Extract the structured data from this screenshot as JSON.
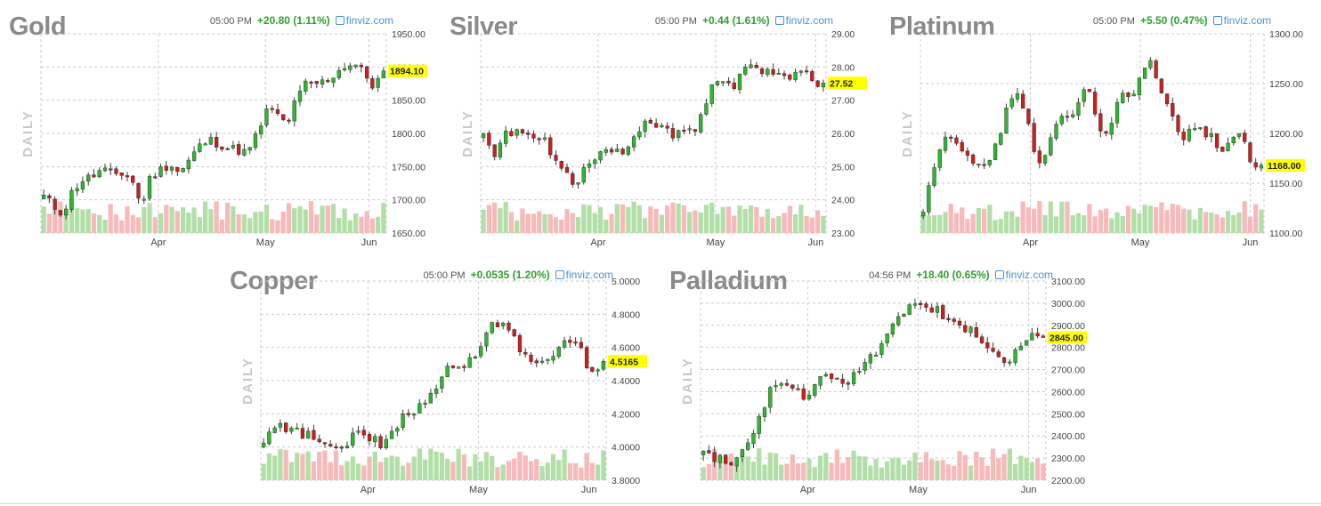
{
  "chart_data": [
    {
      "id": "gold",
      "type": "candlestick",
      "title": "Gold",
      "time": "05:00 PM",
      "change": "+20.80 (1.11%)",
      "source": "finviz.com",
      "period": "DAILY",
      "ylim": [
        1650,
        1950
      ],
      "yticks": [
        "1950.00",
        "1900.00",
        "1850.00",
        "1800.00",
        "1750.00",
        "1700.00",
        "1650.00"
      ],
      "xticks": [
        {
          "label": "Apr",
          "pos": 0.34
        },
        {
          "label": "May",
          "pos": 0.65
        },
        {
          "label": "Jun",
          "pos": 0.95
        }
      ],
      "last": "1894.10",
      "last_value": 1894.1,
      "path": [
        1705,
        1690,
        1680,
        1715,
        1730,
        1735,
        1745,
        1738,
        1740,
        1735,
        1690,
        1735,
        1745,
        1755,
        1740,
        1760,
        1780,
        1790,
        1785,
        1778,
        1775,
        1770,
        1800,
        1835,
        1830,
        1812,
        1850,
        1875,
        1875,
        1878,
        1890,
        1902,
        1905,
        1890,
        1870,
        1894.1
      ]
    },
    {
      "id": "silver",
      "type": "candlestick",
      "title": "Silver",
      "time": "05:00 PM",
      "change": "+0.44 (1.61%)",
      "source": "finviz.com",
      "period": "DAILY",
      "ylim": [
        23,
        29
      ],
      "yticks": [
        "29.00",
        "28.00",
        "27.00",
        "26.00",
        "25.00",
        "24.00",
        "23.00"
      ],
      "xticks": [
        {
          "label": "Apr",
          "pos": 0.34
        },
        {
          "label": "May",
          "pos": 0.68
        },
        {
          "label": "Jun",
          "pos": 0.97
        }
      ],
      "last": "27.52",
      "last_value": 27.52,
      "path": [
        26.1,
        25.1,
        26.2,
        26.0,
        26.1,
        25.8,
        26.0,
        25.2,
        25.0,
        24.3,
        24.9,
        25.3,
        25.5,
        25.6,
        25.3,
        25.9,
        26.2,
        26.4,
        26.1,
        26.0,
        26.2,
        26.0,
        26.6,
        27.5,
        27.7,
        27.4,
        28.0,
        28.1,
        27.8,
        27.9,
        27.7,
        27.8,
        28.0,
        27.5,
        27.52
      ]
    },
    {
      "id": "platinum",
      "type": "candlestick",
      "title": "Platinum",
      "time": "05:00 PM",
      "change": "+5.50 (0.47%)",
      "source": "finviz.com",
      "period": "DAILY",
      "ylim": [
        1100,
        1300
      ],
      "yticks": [
        "1300.00",
        "1250.00",
        "1200.00",
        "1150.00",
        "1100.00"
      ],
      "xticks": [
        {
          "label": "Apr",
          "pos": 0.32
        },
        {
          "label": "May",
          "pos": 0.64
        },
        {
          "label": "Jun",
          "pos": 0.96
        }
      ],
      "last": "1168.00",
      "last_value": 1168.0,
      "path": [
        1120,
        1165,
        1200,
        1195,
        1185,
        1175,
        1160,
        1180,
        1210,
        1240,
        1230,
        1190,
        1165,
        1200,
        1215,
        1220,
        1245,
        1235,
        1195,
        1215,
        1240,
        1230,
        1265,
        1270,
        1240,
        1220,
        1195,
        1210,
        1200,
        1195,
        1175,
        1195,
        1200,
        1162,
        1168
      ]
    },
    {
      "id": "copper",
      "type": "candlestick",
      "title": "Copper",
      "time": "05:00 PM",
      "change": "+0.0535 (1.20%)",
      "source": "finviz.com",
      "period": "DAILY",
      "ylim": [
        3.8,
        5.0
      ],
      "yticks": [
        "5.0000",
        "4.8000",
        "4.6000",
        "4.4000",
        "4.2000",
        "4.0000",
        "3.8000"
      ],
      "xticks": [
        {
          "label": "Apr",
          "pos": 0.31
        },
        {
          "label": "May",
          "pos": 0.63
        },
        {
          "label": "Jun",
          "pos": 0.95
        }
      ],
      "last": "4.5165",
      "last_value": 4.5165,
      "path": [
        4.05,
        4.12,
        4.1,
        4.08,
        4.05,
        4.0,
        3.97,
        4.1,
        4.05,
        4.02,
        4.12,
        4.2,
        4.25,
        4.35,
        4.48,
        4.5,
        4.52,
        4.7,
        4.75,
        4.68,
        4.55,
        4.52,
        4.5,
        4.65,
        4.62,
        4.45,
        4.5165
      ]
    },
    {
      "id": "palladium",
      "type": "candlestick",
      "title": "Palladium",
      "time": "04:56 PM",
      "change": "+18.40 (0.65%)",
      "source": "finviz.com",
      "period": "DAILY",
      "ylim": [
        2200,
        3100
      ],
      "yticks": [
        "3100.00",
        "3000.00",
        "2900.00",
        "2800.00",
        "2700.00",
        "2600.00",
        "2500.00",
        "2400.00",
        "2300.00",
        "2200.00"
      ],
      "xticks": [
        {
          "label": "Apr",
          "pos": 0.31
        },
        {
          "label": "May",
          "pos": 0.63
        },
        {
          "label": "Jun",
          "pos": 0.95
        }
      ],
      "last": "2845.00",
      "last_value": 2845.0,
      "path": [
        2330,
        2300,
        2280,
        2320,
        2420,
        2600,
        2620,
        2640,
        2560,
        2660,
        2680,
        2640,
        2700,
        2760,
        2880,
        2940,
        2980,
        3000,
        2960,
        2900,
        2880,
        2860,
        2780,
        2720,
        2800,
        2850,
        2845
      ]
    }
  ]
}
